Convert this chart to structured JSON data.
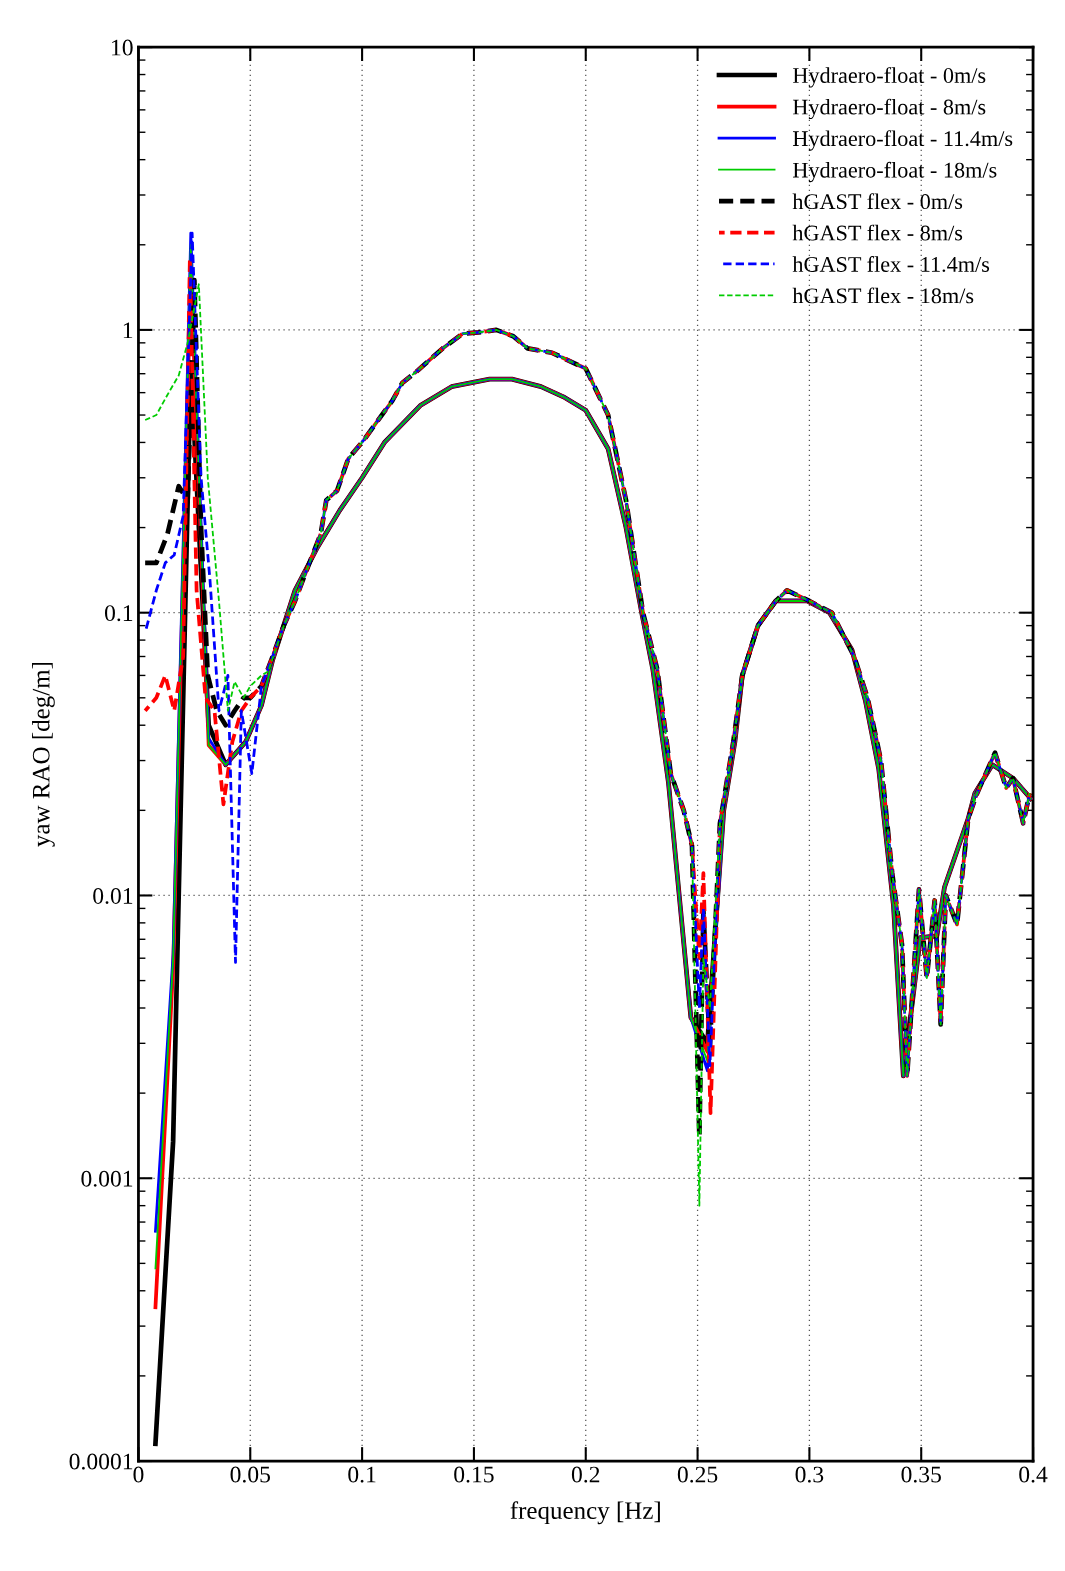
{
  "chart_data": {
    "type": "line",
    "xlabel": "frequency [Hz]",
    "ylabel": "yaw RAO [deg/m]",
    "log": "y",
    "grid": true,
    "legend": "top right",
    "xlim": [
      0,
      0.4
    ],
    "xticks": [
      0,
      0.05,
      0.1,
      0.15,
      0.2,
      0.25,
      0.3,
      0.35,
      0.4
    ],
    "ylim": [
      0.0001,
      10
    ],
    "yticks": [
      0.0001,
      0.001,
      0.01,
      0.1,
      1,
      10
    ],
    "series": [
      {
        "name": "Hydraero-float - 0m/s",
        "color": "#000000",
        "line_style": "solid",
        "x": [
          0.0076,
          0.0155,
          0.0234,
          0.0314,
          0.039,
          0.048,
          0.055,
          0.06,
          0.07,
          0.08,
          0.09,
          0.1,
          0.11,
          0.126,
          0.14,
          0.157,
          0.167,
          0.18,
          0.19,
          0.2,
          0.21,
          0.218,
          0.225,
          0.23,
          0.237,
          0.247,
          0.2544,
          0.2617,
          0.2667,
          0.27,
          0.277,
          0.285,
          0.299,
          0.309,
          0.319,
          0.325,
          0.331,
          0.3376,
          0.342,
          0.3496,
          0.357,
          0.3604,
          0.371,
          0.374,
          0.3818,
          0.391,
          0.399
        ],
        "values": [
          0.000115,
          0.00135,
          0.76,
          0.04,
          0.029,
          0.035,
          0.047,
          0.068,
          0.12,
          0.17,
          0.23,
          0.3,
          0.4,
          0.54,
          0.63,
          0.67,
          0.67,
          0.63,
          0.58,
          0.52,
          0.38,
          0.2,
          0.1,
          0.063,
          0.025,
          0.0037,
          0.003,
          0.02,
          0.035,
          0.06,
          0.09,
          0.11,
          0.11,
          0.1,
          0.074,
          0.049,
          0.028,
          0.0092,
          0.0023,
          0.0071,
          0.0072,
          0.0107,
          0.0187,
          0.023,
          0.029,
          0.026,
          0.022
        ]
      },
      {
        "name": "Hydraero-float - 8m/s",
        "color": "#ff0000",
        "line_style": "solid",
        "x": [
          0.0076,
          0.0155,
          0.0234,
          0.0314,
          0.039,
          0.048,
          0.055,
          0.06,
          0.07,
          0.08,
          0.09,
          0.1,
          0.11,
          0.126,
          0.14,
          0.157,
          0.167,
          0.18,
          0.19,
          0.2,
          0.21,
          0.218,
          0.225,
          0.23,
          0.237,
          0.247,
          0.2544,
          0.2617,
          0.2667,
          0.27,
          0.277,
          0.285,
          0.299,
          0.309,
          0.319,
          0.325,
          0.331,
          0.3376,
          0.342,
          0.3496,
          0.357,
          0.3604,
          0.371,
          0.374,
          0.3818,
          0.391,
          0.399
        ],
        "values": [
          0.00035,
          0.0055,
          1.6,
          0.034,
          0.029,
          0.035,
          0.047,
          0.068,
          0.12,
          0.17,
          0.23,
          0.3,
          0.4,
          0.54,
          0.63,
          0.67,
          0.67,
          0.63,
          0.58,
          0.52,
          0.38,
          0.2,
          0.1,
          0.063,
          0.025,
          0.0037,
          0.0028,
          0.02,
          0.035,
          0.06,
          0.09,
          0.11,
          0.11,
          0.1,
          0.074,
          0.049,
          0.028,
          0.0092,
          0.0023,
          0.0071,
          0.0072,
          0.0107,
          0.0187,
          0.023,
          0.029,
          0.026,
          0.022
        ]
      },
      {
        "name": "Hydraero-float - 11.4m/s",
        "color": "#0000ff",
        "line_style": "solid",
        "x": [
          0.0076,
          0.0155,
          0.0234,
          0.0314,
          0.039,
          0.048,
          0.055,
          0.06,
          0.07,
          0.08,
          0.09,
          0.1,
          0.11,
          0.126,
          0.14,
          0.157,
          0.167,
          0.18,
          0.19,
          0.2,
          0.21,
          0.218,
          0.225,
          0.23,
          0.237,
          0.247,
          0.2544,
          0.2617,
          0.2667,
          0.27,
          0.277,
          0.285,
          0.299,
          0.309,
          0.319,
          0.325,
          0.331,
          0.3376,
          0.342,
          0.3496,
          0.357,
          0.3604,
          0.371,
          0.374,
          0.3818,
          0.391,
          0.399
        ],
        "values": [
          0.00065,
          0.0062,
          2.2,
          0.036,
          0.029,
          0.035,
          0.047,
          0.068,
          0.12,
          0.17,
          0.23,
          0.3,
          0.4,
          0.54,
          0.63,
          0.67,
          0.67,
          0.63,
          0.58,
          0.52,
          0.38,
          0.2,
          0.1,
          0.063,
          0.025,
          0.0037,
          0.0024,
          0.02,
          0.035,
          0.06,
          0.09,
          0.11,
          0.11,
          0.1,
          0.074,
          0.049,
          0.028,
          0.0092,
          0.0023,
          0.0071,
          0.0072,
          0.0107,
          0.0187,
          0.023,
          0.029,
          0.026,
          0.022
        ]
      },
      {
        "name": "Hydraero-float - 18m/s",
        "color": "#00cc00",
        "line_style": "solid",
        "x": [
          0.0076,
          0.0155,
          0.0234,
          0.0314,
          0.039,
          0.048,
          0.055,
          0.06,
          0.07,
          0.08,
          0.09,
          0.1,
          0.11,
          0.126,
          0.14,
          0.157,
          0.167,
          0.18,
          0.19,
          0.2,
          0.21,
          0.218,
          0.225,
          0.23,
          0.237,
          0.247,
          0.2544,
          0.2617,
          0.2667,
          0.27,
          0.277,
          0.285,
          0.299,
          0.309,
          0.319,
          0.325,
          0.331,
          0.3376,
          0.342,
          0.3496,
          0.357,
          0.3604,
          0.371,
          0.374,
          0.3818,
          0.391,
          0.399
        ],
        "values": [
          0.00048,
          0.006,
          2.0,
          0.034,
          0.029,
          0.035,
          0.047,
          0.068,
          0.12,
          0.17,
          0.23,
          0.3,
          0.4,
          0.54,
          0.63,
          0.67,
          0.67,
          0.63,
          0.58,
          0.52,
          0.38,
          0.2,
          0.1,
          0.063,
          0.025,
          0.0037,
          0.0026,
          0.02,
          0.035,
          0.06,
          0.09,
          0.11,
          0.11,
          0.1,
          0.074,
          0.049,
          0.028,
          0.0092,
          0.0023,
          0.0071,
          0.0072,
          0.0107,
          0.0187,
          0.023,
          0.029,
          0.026,
          0.022
        ]
      },
      {
        "name": "hGAST flex - 0m/s",
        "color": "#000000",
        "line_style": "dashed",
        "x": [
          0.003,
          0.008,
          0.013,
          0.018,
          0.022,
          0.025,
          0.028,
          0.031,
          0.035,
          0.039,
          0.043,
          0.047,
          0.05,
          0.055,
          0.06,
          0.065,
          0.07,
          0.075,
          0.0815,
          0.084,
          0.0888,
          0.0938,
          0.101,
          0.108,
          0.1134,
          0.118,
          0.125,
          0.136,
          0.145,
          0.152,
          0.16,
          0.1676,
          0.174,
          0.185,
          0.2,
          0.21,
          0.218,
          0.2256,
          0.232,
          0.238,
          0.2438,
          0.2475,
          0.2508,
          0.2526,
          0.2555,
          0.26,
          0.266,
          0.27,
          0.277,
          0.285,
          0.29,
          0.3,
          0.31,
          0.32,
          0.326,
          0.332,
          0.337,
          0.3414,
          0.3437,
          0.349,
          0.3525,
          0.356,
          0.3587,
          0.361,
          0.366,
          0.371,
          0.375,
          0.383,
          0.388,
          0.391,
          0.3956,
          0.3985
        ],
        "values": [
          0.15,
          0.15,
          0.19,
          0.28,
          0.25,
          1.5,
          0.2,
          0.06,
          0.045,
          0.04,
          0.045,
          0.05,
          0.05,
          0.055,
          0.07,
          0.09,
          0.11,
          0.14,
          0.19,
          0.25,
          0.27,
          0.35,
          0.41,
          0.49,
          0.56,
          0.65,
          0.72,
          0.86,
          0.97,
          0.98,
          1.0,
          0.95,
          0.86,
          0.83,
          0.73,
          0.5,
          0.25,
          0.1,
          0.063,
          0.027,
          0.02,
          0.015,
          0.0014,
          0.0088,
          0.0029,
          0.018,
          0.035,
          0.06,
          0.09,
          0.11,
          0.12,
          0.11,
          0.1,
          0.07,
          0.05,
          0.03,
          0.012,
          0.0067,
          0.0023,
          0.0105,
          0.0051,
          0.0096,
          0.0035,
          0.01,
          0.0079,
          0.0187,
          0.023,
          0.032,
          0.024,
          0.026,
          0.018,
          0.023
        ]
      },
      {
        "name": "hGAST flex - 8m/s",
        "color": "#ff0000",
        "line_style": "dashed",
        "x": [
          0.003,
          0.008,
          0.012,
          0.016,
          0.02,
          0.023,
          0.026,
          0.03,
          0.034,
          0.038,
          0.042,
          0.046,
          0.05,
          0.055,
          0.06,
          0.065,
          0.07,
          0.075,
          0.0815,
          0.084,
          0.0888,
          0.0938,
          0.101,
          0.108,
          0.1134,
          0.118,
          0.125,
          0.136,
          0.145,
          0.152,
          0.16,
          0.1676,
          0.174,
          0.185,
          0.2,
          0.21,
          0.218,
          0.2256,
          0.232,
          0.238,
          0.2438,
          0.2475,
          0.2508,
          0.2526,
          0.2558,
          0.26,
          0.266,
          0.27,
          0.277,
          0.285,
          0.29,
          0.3,
          0.31,
          0.32,
          0.326,
          0.332,
          0.337,
          0.3414,
          0.3437,
          0.349,
          0.3525,
          0.356,
          0.3587,
          0.361,
          0.366,
          0.371,
          0.375,
          0.383,
          0.388,
          0.391,
          0.3956,
          0.3985
        ],
        "values": [
          0.045,
          0.05,
          0.06,
          0.045,
          0.07,
          1.8,
          0.12,
          0.05,
          0.045,
          0.021,
          0.035,
          0.045,
          0.05,
          0.055,
          0.07,
          0.09,
          0.11,
          0.14,
          0.19,
          0.25,
          0.27,
          0.35,
          0.41,
          0.49,
          0.56,
          0.65,
          0.72,
          0.86,
          0.97,
          0.98,
          1.0,
          0.95,
          0.86,
          0.83,
          0.73,
          0.5,
          0.25,
          0.1,
          0.063,
          0.027,
          0.02,
          0.015,
          0.006,
          0.012,
          0.0017,
          0.018,
          0.035,
          0.06,
          0.09,
          0.11,
          0.12,
          0.11,
          0.1,
          0.07,
          0.05,
          0.03,
          0.012,
          0.0067,
          0.0023,
          0.0105,
          0.0051,
          0.0096,
          0.0035,
          0.01,
          0.0079,
          0.0187,
          0.023,
          0.032,
          0.024,
          0.026,
          0.018,
          0.023
        ]
      },
      {
        "name": "hGAST flex - 11.4m/s",
        "color": "#0000ff",
        "line_style": "dashed",
        "x": [
          0.003,
          0.008,
          0.012,
          0.016,
          0.02,
          0.024,
          0.028,
          0.032,
          0.036,
          0.04,
          0.0434,
          0.046,
          0.0507,
          0.055,
          0.06,
          0.065,
          0.07,
          0.075,
          0.0815,
          0.084,
          0.0888,
          0.0938,
          0.101,
          0.108,
          0.1134,
          0.118,
          0.125,
          0.136,
          0.145,
          0.152,
          0.16,
          0.1676,
          0.174,
          0.185,
          0.2,
          0.21,
          0.218,
          0.2256,
          0.232,
          0.238,
          0.2438,
          0.2475,
          0.2508,
          0.2526,
          0.2555,
          0.26,
          0.266,
          0.27,
          0.277,
          0.285,
          0.29,
          0.3,
          0.31,
          0.32,
          0.326,
          0.332,
          0.337,
          0.3414,
          0.3437,
          0.349,
          0.3525,
          0.356,
          0.3587,
          0.361,
          0.366,
          0.371,
          0.375,
          0.383,
          0.388,
          0.391,
          0.3956,
          0.3985
        ],
        "values": [
          0.085,
          0.12,
          0.15,
          0.16,
          0.22,
          2.2,
          0.3,
          0.13,
          0.045,
          0.06,
          0.0058,
          0.045,
          0.027,
          0.055,
          0.07,
          0.09,
          0.11,
          0.14,
          0.19,
          0.25,
          0.27,
          0.35,
          0.41,
          0.49,
          0.56,
          0.65,
          0.72,
          0.86,
          0.97,
          0.98,
          1.0,
          0.95,
          0.86,
          0.83,
          0.73,
          0.5,
          0.25,
          0.1,
          0.063,
          0.027,
          0.02,
          0.015,
          0.004,
          0.009,
          0.0025,
          0.018,
          0.035,
          0.06,
          0.09,
          0.11,
          0.12,
          0.11,
          0.1,
          0.07,
          0.05,
          0.03,
          0.012,
          0.0067,
          0.0023,
          0.0105,
          0.0051,
          0.0096,
          0.0035,
          0.01,
          0.0079,
          0.0187,
          0.023,
          0.032,
          0.024,
          0.026,
          0.018,
          0.023
        ]
      },
      {
        "name": "hGAST flex - 18m/s",
        "color": "#00cc00",
        "line_style": "dashed",
        "x": [
          0.003,
          0.008,
          0.013,
          0.018,
          0.022,
          0.027,
          0.031,
          0.036,
          0.04,
          0.043,
          0.047,
          0.05,
          0.055,
          0.058,
          0.065,
          0.07,
          0.075,
          0.0815,
          0.084,
          0.0888,
          0.0938,
          0.101,
          0.108,
          0.1134,
          0.118,
          0.125,
          0.136,
          0.145,
          0.152,
          0.16,
          0.1676,
          0.174,
          0.185,
          0.2,
          0.21,
          0.218,
          0.2256,
          0.232,
          0.238,
          0.2438,
          0.2475,
          0.2508,
          0.2526,
          0.2555,
          0.26,
          0.266,
          0.27,
          0.277,
          0.285,
          0.29,
          0.3,
          0.31,
          0.32,
          0.326,
          0.332,
          0.337,
          0.3414,
          0.3437,
          0.349,
          0.3525,
          0.356,
          0.3587,
          0.361,
          0.366,
          0.371,
          0.375,
          0.383,
          0.388,
          0.391,
          0.3956,
          0.3985
        ],
        "values": [
          0.48,
          0.5,
          0.59,
          0.69,
          0.9,
          1.45,
          0.3,
          0.11,
          0.045,
          0.057,
          0.05,
          0.055,
          0.06,
          0.062,
          0.09,
          0.11,
          0.14,
          0.19,
          0.25,
          0.27,
          0.35,
          0.41,
          0.49,
          0.56,
          0.65,
          0.72,
          0.86,
          0.97,
          0.98,
          1.0,
          0.95,
          0.86,
          0.83,
          0.73,
          0.5,
          0.25,
          0.1,
          0.063,
          0.027,
          0.02,
          0.015,
          0.0008,
          0.006,
          0.004,
          0.018,
          0.035,
          0.06,
          0.09,
          0.11,
          0.12,
          0.11,
          0.1,
          0.07,
          0.05,
          0.03,
          0.012,
          0.0067,
          0.0023,
          0.0105,
          0.0051,
          0.0096,
          0.0035,
          0.01,
          0.0079,
          0.0187,
          0.023,
          0.032,
          0.024,
          0.026,
          0.018,
          0.023
        ]
      }
    ]
  }
}
